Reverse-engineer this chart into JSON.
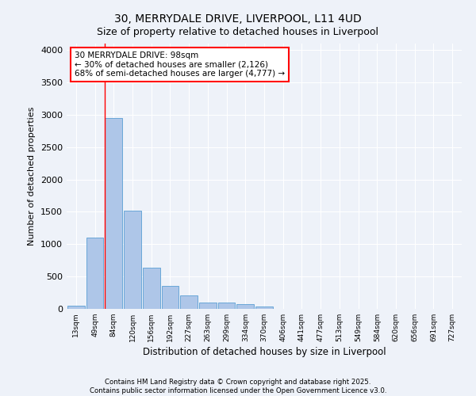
{
  "title_line1": "30, MERRYDALE DRIVE, LIVERPOOL, L11 4UD",
  "title_line2": "Size of property relative to detached houses in Liverpool",
  "xlabel": "Distribution of detached houses by size in Liverpool",
  "ylabel": "Number of detached properties",
  "footnote": "Contains HM Land Registry data © Crown copyright and database right 2025.\nContains public sector information licensed under the Open Government Licence v3.0.",
  "bar_labels": [
    "13sqm",
    "49sqm",
    "84sqm",
    "120sqm",
    "156sqm",
    "192sqm",
    "227sqm",
    "263sqm",
    "299sqm",
    "334sqm",
    "370sqm",
    "406sqm",
    "441sqm",
    "477sqm",
    "513sqm",
    "549sqm",
    "584sqm",
    "620sqm",
    "656sqm",
    "691sqm",
    "727sqm"
  ],
  "bar_values": [
    50,
    1100,
    2950,
    1520,
    640,
    350,
    210,
    95,
    95,
    70,
    35,
    5,
    0,
    0,
    0,
    0,
    0,
    0,
    0,
    0,
    0
  ],
  "bar_color": "#aec6e8",
  "bar_edge_color": "#5a9fd4",
  "ylim": [
    0,
    4100
  ],
  "yticks": [
    0,
    500,
    1000,
    1500,
    2000,
    2500,
    3000,
    3500,
    4000
  ],
  "vline_x": 2,
  "annotation_text": "30 MERRYDALE DRIVE: 98sqm\n← 30% of detached houses are smaller (2,126)\n68% of semi-detached houses are larger (4,777) →",
  "background_color": "#eef2f9",
  "grid_color": "#ffffff"
}
